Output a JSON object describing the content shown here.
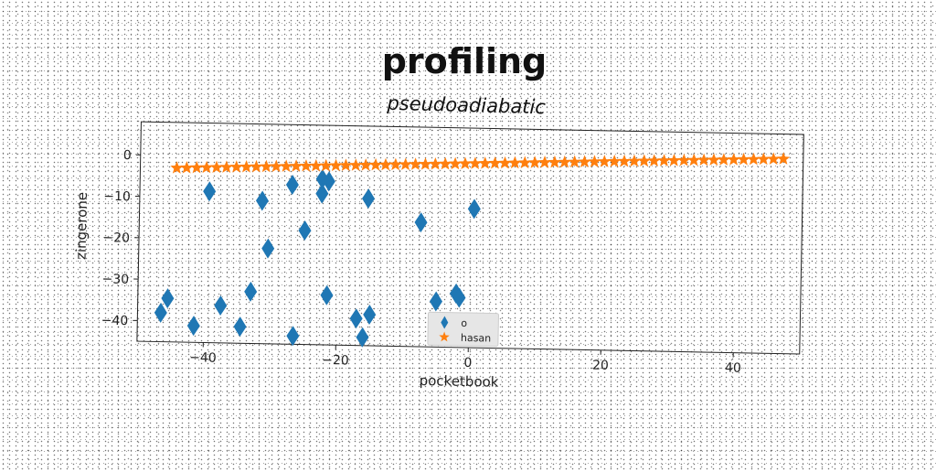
{
  "chart_data": {
    "type": "scatter",
    "title": "profiling",
    "subtitle": "pseudoadiabatic",
    "xlabel": "pocketbook",
    "ylabel": "zingerone",
    "xlim": [
      -50,
      50
    ],
    "ylim": [
      -45,
      8
    ],
    "x_ticks": [
      -40,
      -20,
      0,
      20,
      40
    ],
    "y_ticks": [
      0,
      -10,
      -20,
      -30,
      -40
    ],
    "x_tick_labels": [
      "−40",
      "−20",
      "0",
      "20",
      "40"
    ],
    "y_tick_labels": [
      "0",
      "−10",
      "−20",
      "−30",
      "−40"
    ],
    "grid": false,
    "legend_position": "bottom-center",
    "series": [
      {
        "name": "o",
        "marker": "diamond",
        "color": "#1f77b4",
        "points": [
          [
            -39.5,
            -8.5
          ],
          [
            -31.5,
            -10.5
          ],
          [
            -27,
            -6.5
          ],
          [
            -22.5,
            -5
          ],
          [
            -21.5,
            -5.5
          ],
          [
            -22.5,
            -8.5
          ],
          [
            -15.5,
            -9.5
          ],
          [
            -7.5,
            -15
          ],
          [
            0.5,
            -11.5
          ],
          [
            -30.5,
            -22
          ],
          [
            -25,
            -17.5
          ],
          [
            -45.5,
            -34.5
          ],
          [
            -46.5,
            -38
          ],
          [
            -41.5,
            -41
          ],
          [
            -37.5,
            -36
          ],
          [
            -34.5,
            -41
          ],
          [
            -33,
            -32.5
          ],
          [
            -26.5,
            -43
          ],
          [
            -21.5,
            -33
          ],
          [
            -17,
            -38.5
          ],
          [
            -15,
            -37.5
          ],
          [
            -16,
            -43
          ],
          [
            -5,
            -34
          ],
          [
            -2,
            -32
          ],
          [
            -1.5,
            -33
          ]
        ]
      },
      {
        "name": "hasan",
        "marker": "star",
        "color": "#ff7f0e",
        "x": [
          -44.5,
          -43,
          -41.5,
          -40,
          -38.5,
          -37,
          -35.5,
          -34,
          -32.5,
          -31,
          -29.5,
          -28,
          -26.5,
          -25,
          -23.5,
          -22,
          -20.5,
          -19,
          -17.5,
          -16,
          -14.5,
          -13,
          -11.5,
          -10,
          -8.5,
          -7,
          -5.5,
          -4,
          -2.5,
          -1,
          0.5,
          2,
          3.5,
          5,
          6.5,
          8,
          9.5,
          11,
          12.5,
          14,
          15.5,
          17,
          18.5,
          20,
          21.5,
          23,
          24.5,
          26,
          27.5,
          29,
          30.5,
          32,
          33.5,
          35,
          36.5,
          38,
          39.5,
          41,
          42.5,
          44,
          45.5,
          47
        ],
        "y_start": -3.0,
        "y_end": 2.0
      }
    ]
  }
}
